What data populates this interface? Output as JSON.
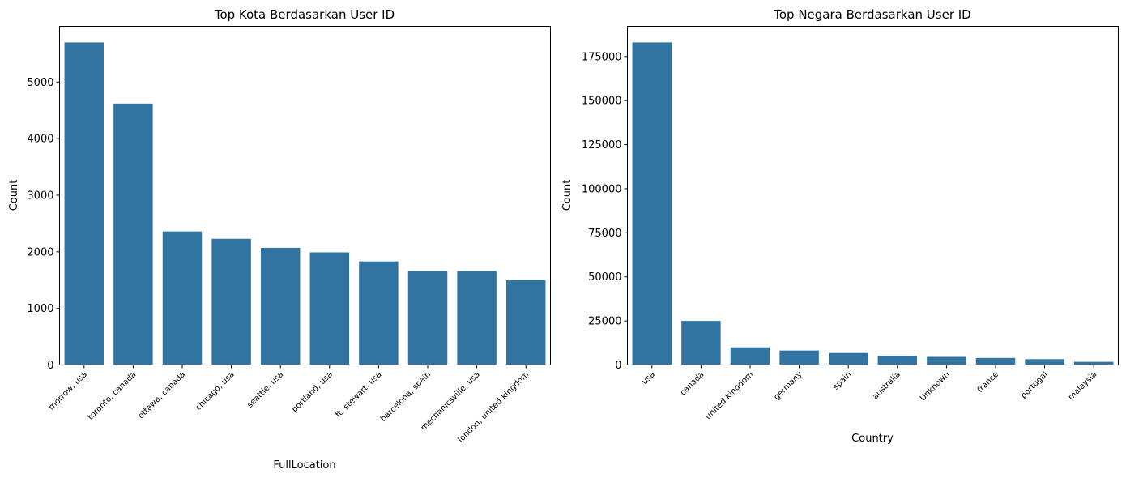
{
  "chart_data": [
    {
      "type": "bar",
      "title": "Top Kota Berdasarkan User ID",
      "xlabel": "FullLocation",
      "ylabel": "Count",
      "categories": [
        "morrow, usa",
        "toronto, canada",
        "ottawa, canada",
        "chicago, usa",
        "seattle, usa",
        "portland, usa",
        "ft. stewart, usa",
        "barcelona, spain",
        "mechanicsville, usa",
        "london, united kingdom"
      ],
      "values": [
        5700,
        4620,
        2360,
        2230,
        2070,
        1990,
        1830,
        1660,
        1660,
        1500
      ],
      "ylim": [
        0,
        5985
      ],
      "yticks": [
        0,
        1000,
        2000,
        3000,
        4000,
        5000
      ],
      "grid": false,
      "color": "#3274a1"
    },
    {
      "type": "bar",
      "title": "Top Negara Berdasarkan User ID",
      "xlabel": "Country",
      "ylabel": "Count",
      "categories": [
        "usa",
        "canada",
        "united kingdom",
        "germany",
        "spain",
        "australia",
        "Unknown",
        "france",
        "portugal",
        "malaysia"
      ],
      "values": [
        183000,
        25000,
        10000,
        8200,
        6800,
        5200,
        4600,
        4000,
        3300,
        1800
      ],
      "ylim": [
        0,
        192150
      ],
      "yticks": [
        0,
        25000,
        50000,
        75000,
        100000,
        125000,
        150000,
        175000
      ],
      "grid": false,
      "color": "#3274a1"
    }
  ]
}
